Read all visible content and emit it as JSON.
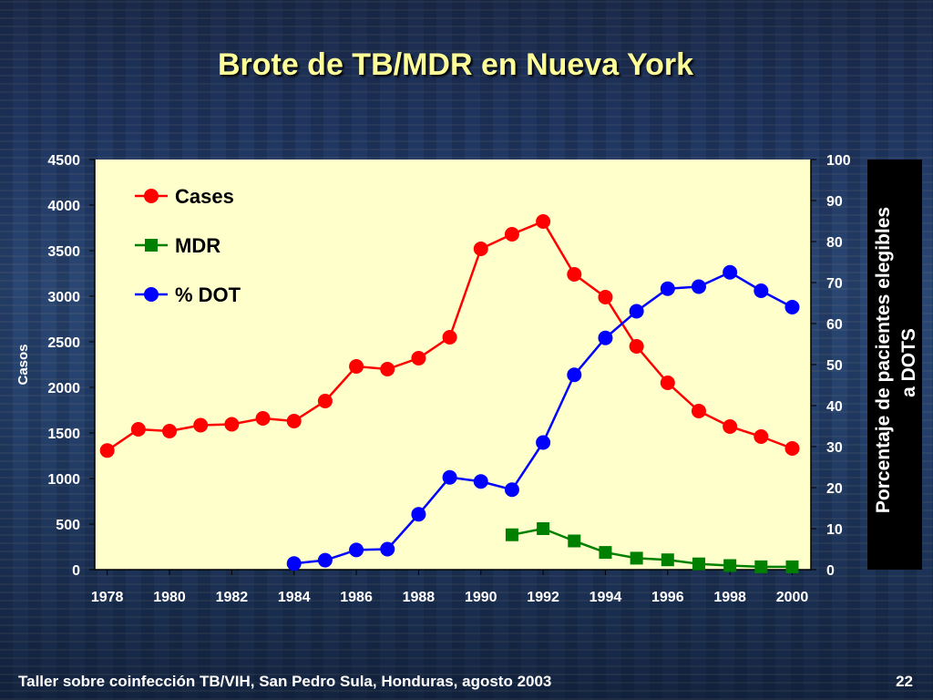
{
  "slide": {
    "title": "Brote de TB/MDR en Nueva York",
    "footer": "Taller sobre coinfección TB/VIH, San Pedro Sula, Honduras, agosto 2003",
    "page_number": "22"
  },
  "colors": {
    "plot_bg": "#ffffcc",
    "cases": "#ff0000",
    "mdr": "#008000",
    "dot": "#0000ff",
    "title": "#ffff99"
  },
  "chart_data": {
    "type": "line",
    "title": "Brote de TB/MDR en Nueva York",
    "xlabel": "",
    "ylabel": "Casos",
    "y2label": [
      "Porcentaje de pacientes elegibles",
      "a DOTS"
    ],
    "x_ticks": [
      1978,
      1980,
      1982,
      1984,
      1986,
      1988,
      1990,
      1992,
      1994,
      1996,
      1998,
      2000
    ],
    "y_ticks": [
      0,
      500,
      1000,
      1500,
      2000,
      2500,
      3000,
      3500,
      4000,
      4500
    ],
    "y2_ticks": [
      0,
      10,
      20,
      30,
      40,
      50,
      60,
      70,
      80,
      90,
      100
    ],
    "xlim": [
      1977.6,
      2000.6
    ],
    "ylim": [
      0,
      4500
    ],
    "y2lim": [
      0,
      100
    ],
    "grid": false,
    "legend": "top-left",
    "series": [
      {
        "name": "Cases",
        "axis": "left",
        "marker": "circle",
        "x": [
          1978,
          1979,
          1980,
          1981,
          1982,
          1983,
          1984,
          1985,
          1986,
          1987,
          1988,
          1989,
          1990,
          1991,
          1992,
          1993,
          1994,
          1995,
          1996,
          1997,
          1998,
          1999,
          2000
        ],
        "values": [
          1307,
          1540,
          1520,
          1585,
          1595,
          1660,
          1630,
          1850,
          2230,
          2200,
          2320,
          2550,
          3520,
          3680,
          3820,
          3240,
          2990,
          2450,
          2050,
          1740,
          1570,
          1460,
          1330
        ]
      },
      {
        "name": "MDR",
        "axis": "right",
        "marker": "square",
        "x": [
          1991,
          1992,
          1993,
          1994,
          1995,
          1996,
          1997,
          1998,
          1999,
          2000
        ],
        "values": [
          8.5,
          10,
          7,
          4.2,
          2.8,
          2.4,
          1.4,
          1.0,
          0.7,
          0.7
        ]
      },
      {
        "name": "% DOT",
        "axis": "right",
        "marker": "circle",
        "x": [
          1984,
          1985,
          1986,
          1987,
          1988,
          1989,
          1990,
          1991,
          1992,
          1993,
          1994,
          1995,
          1996,
          1997,
          1998,
          1999,
          2000
        ],
        "values": [
          1.5,
          2.3,
          4.8,
          5.0,
          13.5,
          22.5,
          21.5,
          19.5,
          31,
          47.5,
          56.5,
          63,
          68.5,
          69,
          72.5,
          68,
          64
        ]
      }
    ]
  }
}
